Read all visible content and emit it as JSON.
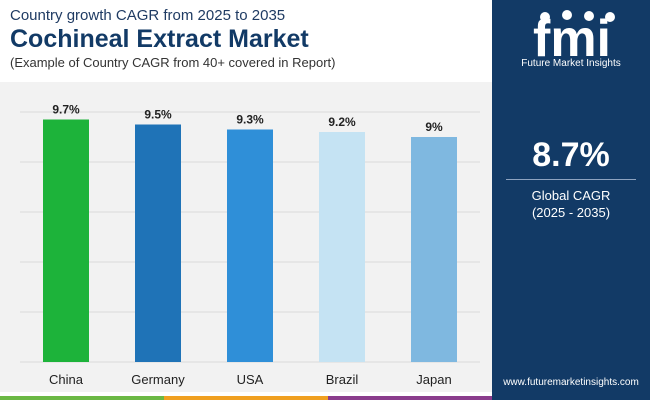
{
  "header": {
    "subtitle": "Country growth CAGR from 2025 to 2035",
    "title": "Cochineal Extract Market",
    "note": "(Example of Country CAGR from 40+ covered in Report)"
  },
  "brand": {
    "name": "Future Market Insights",
    "logo_text": "fmi",
    "website": "www.futuremarketinsights.com"
  },
  "kpi": {
    "value": "8.7%",
    "label": "Global CAGR",
    "period": "(2025 - 2035)"
  },
  "colors": {
    "navy": "#123a66",
    "china": "#1db33a",
    "germany": "#1f73b7",
    "usa": "#2f8fd8",
    "brazil": "#c5e3f3",
    "japan": "#7fb8e0",
    "footer": [
      "#6bb844",
      "#f0a020",
      "#8a3c8c"
    ]
  },
  "chart_data": {
    "type": "bar",
    "title": "Cochineal Extract Market",
    "xlabel": "",
    "ylabel": "",
    "categories": [
      "China",
      "Germany",
      "USA",
      "Brazil",
      "Japan"
    ],
    "values": [
      9.7,
      9.5,
      9.3,
      9.2,
      9.0
    ],
    "data_labels": [
      "9.7%",
      "9.5%",
      "9.3%",
      "9.2%",
      "9%"
    ],
    "bar_colors": [
      "#1db33a",
      "#1f73b7",
      "#2f8fd8",
      "#c5e3f3",
      "#7fb8e0"
    ],
    "ylim": [
      0,
      10.8
    ],
    "grid": true
  }
}
